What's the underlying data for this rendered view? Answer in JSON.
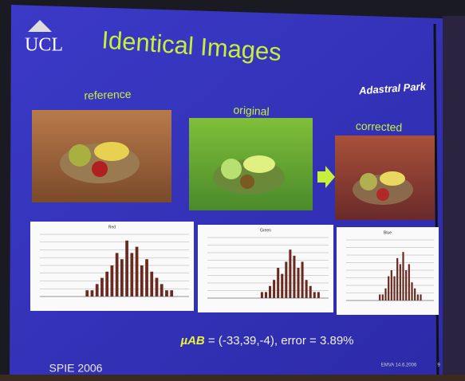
{
  "slide": {
    "logo": "UCL",
    "title": "Identical Images",
    "partner": "Adastral Park",
    "images": [
      {
        "label": "reference"
      },
      {
        "label": "original"
      },
      {
        "label": "corrected"
      }
    ],
    "histograms": [
      {
        "label": "Red",
        "ylim": [
          0,
          10
        ],
        "values": [
          0,
          0,
          0,
          0,
          0,
          0,
          0,
          0,
          0,
          1,
          1,
          2,
          3,
          4,
          5,
          7,
          6,
          9,
          7,
          8,
          5,
          6,
          4,
          3,
          2,
          1,
          1,
          0,
          0,
          0
        ]
      },
      {
        "label": "Green",
        "ylim": [
          0,
          10
        ],
        "values": [
          0,
          0,
          0,
          0,
          0,
          0,
          0,
          0,
          0,
          0,
          0,
          0,
          0,
          1,
          1,
          2,
          3,
          5,
          4,
          6,
          8,
          7,
          5,
          6,
          3,
          2,
          1,
          1,
          0,
          0
        ]
      },
      {
        "label": "Blue",
        "ylim": [
          0,
          10
        ],
        "values": [
          0,
          0,
          0,
          0,
          0,
          0,
          0,
          0,
          0,
          0,
          0,
          1,
          1,
          2,
          4,
          5,
          4,
          7,
          6,
          8,
          5,
          6,
          3,
          2,
          1,
          1,
          0,
          0,
          0,
          0
        ]
      }
    ],
    "formula_symbol": "µAB",
    "formula_rest": " = (-33,39,-4), error = 3.89%",
    "footer_left": "SPIE 2006",
    "footer_right": "EMVA 14.6.2006",
    "page_number": "9"
  }
}
